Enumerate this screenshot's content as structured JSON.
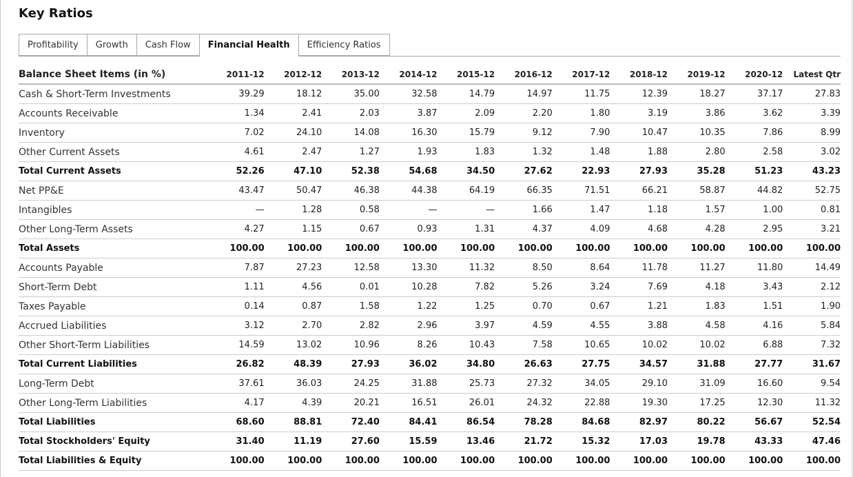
{
  "header": {
    "title": "Key Ratios"
  },
  "tabs": [
    "Profitability",
    "Growth",
    "Cash Flow",
    "Financial Health",
    "Efficiency Ratios"
  ],
  "active_tab": 3,
  "table": {
    "columns": [
      "Balance Sheet Items (in %)",
      "2011-12",
      "2012-12",
      "2013-12",
      "2014-12",
      "2015-12",
      "2016-12",
      "2017-12",
      "2018-12",
      "2019-12",
      "2020-12",
      "Latest Qtr"
    ],
    "rows": [
      {
        "cells": [
          "Cash & Short-Term Investments",
          "39.29",
          "18.12",
          "35.00",
          "32.58",
          "14.79",
          "14.97",
          "11.75",
          "12.39",
          "18.27",
          "37.17",
          "27.83"
        ]
      },
      {
        "cells": [
          "Accounts Receivable",
          "1.34",
          "2.41",
          "2.03",
          "3.87",
          "2.09",
          "2.20",
          "1.80",
          "3.19",
          "3.86",
          "3.62",
          "3.39"
        ]
      },
      {
        "cells": [
          "Inventory",
          "7.02",
          "24.10",
          "14.08",
          "16.30",
          "15.79",
          "9.12",
          "7.90",
          "10.47",
          "10.35",
          "7.86",
          "8.99"
        ]
      },
      {
        "cells": [
          "Other Current Assets",
          "4.61",
          "2.47",
          "1.27",
          "1.93",
          "1.83",
          "1.32",
          "1.48",
          "1.88",
          "2.80",
          "2.58",
          "3.02"
        ]
      },
      {
        "cells": [
          "Total Current Assets",
          "52.26",
          "47.10",
          "52.38",
          "54.68",
          "34.50",
          "27.62",
          "22.93",
          "27.93",
          "35.28",
          "51.23",
          "43.23"
        ],
        "bold": true
      },
      {
        "cells": [
          "Net PP&E",
          "43.47",
          "50.47",
          "46.38",
          "44.38",
          "64.19",
          "66.35",
          "71.51",
          "66.21",
          "58.87",
          "44.82",
          "52.75"
        ]
      },
      {
        "cells": [
          "Intangibles",
          "—",
          "1.28",
          "0.58",
          "—",
          "—",
          "1.66",
          "1.47",
          "1.18",
          "1.57",
          "1.00",
          "0.81"
        ]
      },
      {
        "cells": [
          "Other Long-Term Assets",
          "4.27",
          "1.15",
          "0.67",
          "0.93",
          "1.31",
          "4.37",
          "4.09",
          "4.68",
          "4.28",
          "2.95",
          "3.21"
        ]
      },
      {
        "cells": [
          "Total Assets",
          "100.00",
          "100.00",
          "100.00",
          "100.00",
          "100.00",
          "100.00",
          "100.00",
          "100.00",
          "100.00",
          "100.00",
          "100.00"
        ],
        "bold": true
      },
      {
        "cells": [
          "Accounts Payable",
          "7.87",
          "27.23",
          "12.58",
          "13.30",
          "11.32",
          "8.50",
          "8.64",
          "11.78",
          "11.27",
          "11.80",
          "14.49"
        ]
      },
      {
        "cells": [
          "Short-Term Debt",
          "1.11",
          "4.56",
          "0.01",
          "10.28",
          "7.82",
          "5.26",
          "3.24",
          "7.69",
          "4.18",
          "3.43",
          "2.12"
        ]
      },
      {
        "cells": [
          "Taxes Payable",
          "0.14",
          "0.87",
          "1.58",
          "1.22",
          "1.25",
          "0.70",
          "0.67",
          "1.21",
          "1.83",
          "1.51",
          "1.90"
        ]
      },
      {
        "cells": [
          "Accrued Liabilities",
          "3.12",
          "2.70",
          "2.82",
          "2.96",
          "3.97",
          "4.59",
          "4.55",
          "3.88",
          "4.58",
          "4.16",
          "5.84"
        ]
      },
      {
        "cells": [
          "Other Short-Term Liabilities",
          "14.59",
          "13.02",
          "10.96",
          "8.26",
          "10.43",
          "7.58",
          "10.65",
          "10.02",
          "10.02",
          "6.88",
          "7.32"
        ]
      },
      {
        "cells": [
          "Total Current Liabilities",
          "26.82",
          "48.39",
          "27.93",
          "36.02",
          "34.80",
          "26.63",
          "27.75",
          "34.57",
          "31.88",
          "27.77",
          "31.67"
        ],
        "bold": true
      },
      {
        "cells": [
          "Long-Term Debt",
          "37.61",
          "36.03",
          "24.25",
          "31.88",
          "25.73",
          "27.32",
          "34.05",
          "29.10",
          "31.09",
          "16.60",
          "9.54"
        ]
      },
      {
        "cells": [
          "Other Long-Term Liabilities",
          "4.17",
          "4.39",
          "20.21",
          "16.51",
          "26.01",
          "24.32",
          "22.88",
          "19.30",
          "17.25",
          "12.30",
          "11.32"
        ]
      },
      {
        "cells": [
          "Total Liabilities",
          "68.60",
          "88.81",
          "72.40",
          "84.41",
          "86.54",
          "78.28",
          "84.68",
          "82.97",
          "80.22",
          "56.67",
          "52.54"
        ],
        "bold": true
      },
      {
        "cells": [
          "Total Stockholders' Equity",
          "31.40",
          "11.19",
          "27.60",
          "15.59",
          "13.46",
          "21.72",
          "15.32",
          "17.03",
          "19.78",
          "43.33",
          "47.46"
        ],
        "bold": true
      },
      {
        "cells": [
          "Total Liabilities & Equity",
          "100.00",
          "100.00",
          "100.00",
          "100.00",
          "100.00",
          "100.00",
          "100.00",
          "100.00",
          "100.00",
          "100.00",
          "100.00"
        ],
        "bold": true
      }
    ]
  }
}
